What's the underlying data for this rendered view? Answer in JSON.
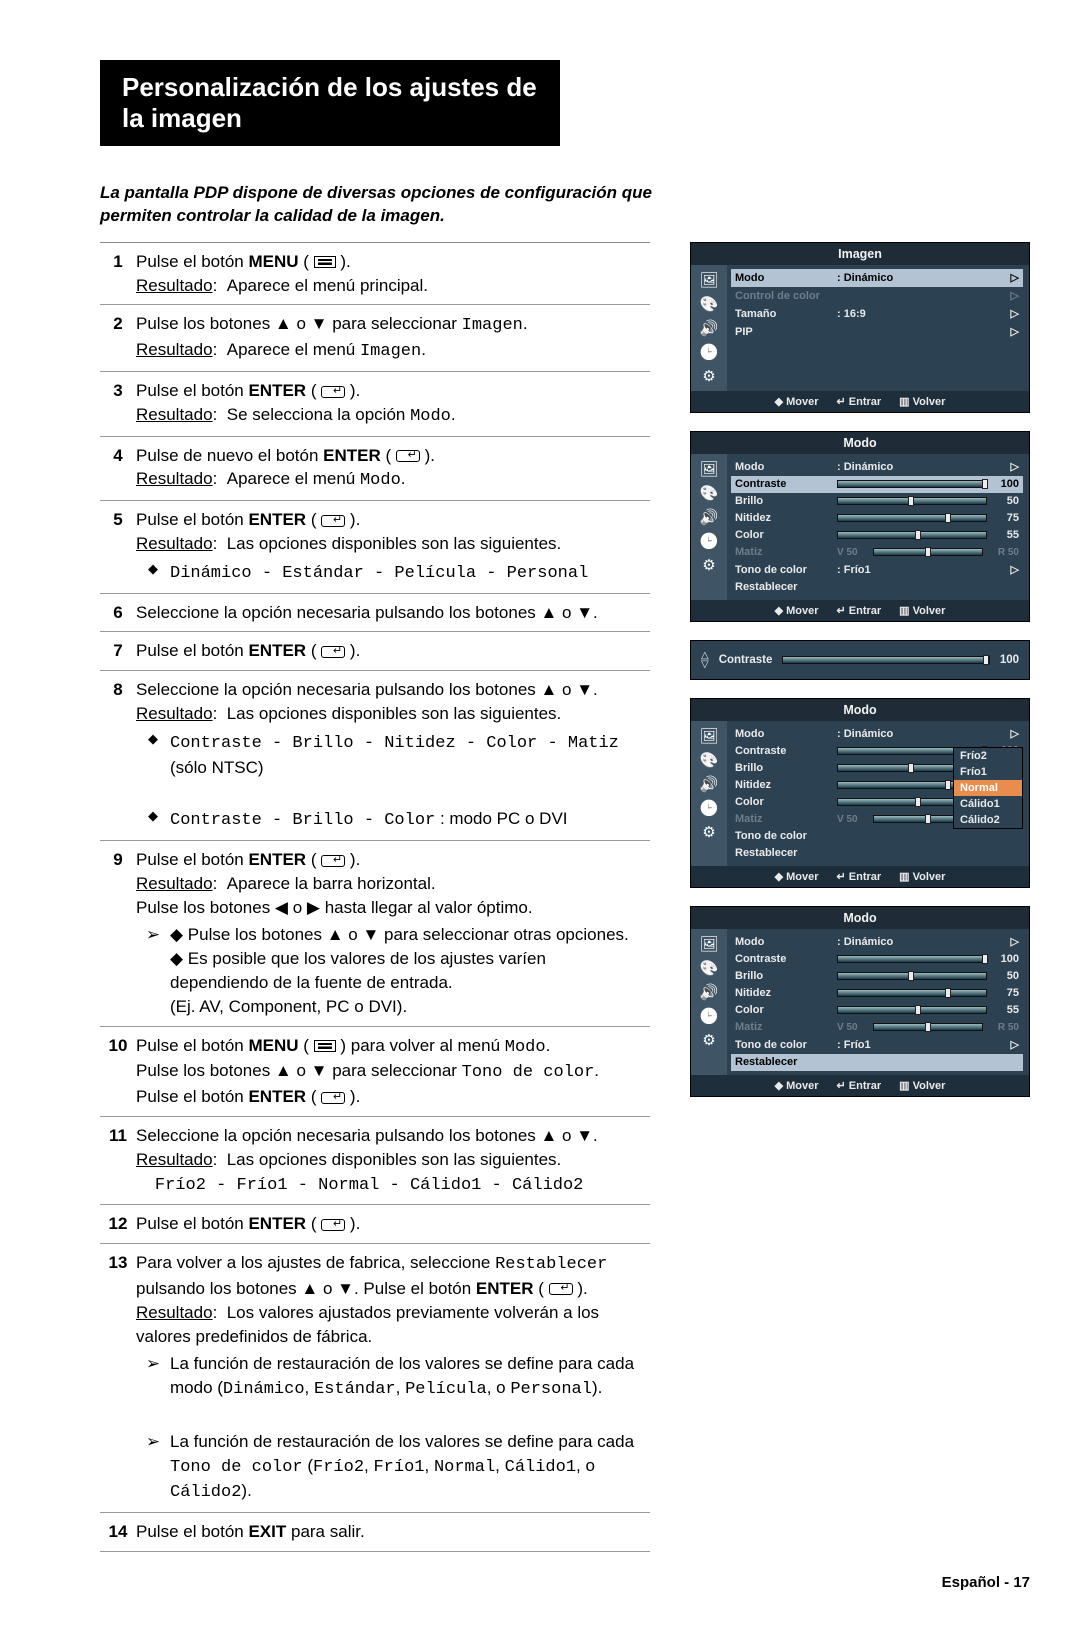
{
  "title": "Personalización de los ajustes de la imagen",
  "intro": "La pantalla PDP dispone de diversas opciones de configuración que permiten controlar la calidad de la imagen.",
  "steps": [
    {
      "n": "1",
      "lines": [
        "Pulse el botón <b>MENU</b> ( <span class='menu-glyph'></span> ).",
        "<span class='res-underline'>Resultado</span>: &nbsp;Aparece el menú principal."
      ]
    },
    {
      "n": "2",
      "lines": [
        "Pulse los botones ▲ o ▼ para seleccionar <span class='mono'>Imagen</span>.",
        "<span class='res-underline'>Resultado</span>: &nbsp;Aparece el menú <span class='mono'>Imagen</span>."
      ]
    },
    {
      "n": "3",
      "lines": [
        "Pulse el botón <b>ENTER</b> ( <span class='enter-glyph'></span> ).",
        "<span class='res-underline'>Resultado</span>: &nbsp;Se selecciona la opción <span class='mono'>Modo</span>."
      ]
    },
    {
      "n": "4",
      "lines": [
        "Pulse de nuevo el botón <b>ENTER</b> ( <span class='enter-glyph'></span> ).",
        "<span class='res-underline'>Resultado</span>: &nbsp;Aparece el menú <span class='mono'>Modo</span>."
      ]
    },
    {
      "n": "5",
      "lines": [
        "Pulse el botón <b>ENTER</b> ( <span class='enter-glyph'></span> ).",
        "<span class='res-underline'>Resultado</span>: &nbsp;Las opciones disponibles son las siguientes.",
        "<div class='sub-indent'><div class='diamond'>◆</div><div class='pointer-text'><span class='mono'>Dinámico - Estándar - Película - Personal</span></div></div>"
      ]
    },
    {
      "n": "6",
      "lines": [
        "Seleccione la opción necesaria pulsando los botones ▲ o ▼."
      ]
    },
    {
      "n": "7",
      "lines": [
        "Pulse el botón <b>ENTER</b> ( <span class='enter-glyph'></span> )."
      ]
    },
    {
      "n": "8",
      "lines": [
        "Seleccione la opción necesaria pulsando los botones ▲ o ▼.",
        "<span class='res-underline'>Resultado</span>: &nbsp;Las opciones disponibles son las siguientes.",
        "<div class='sub-indent'><div class='diamond'>◆</div><div class='pointer-text'><span class='mono'>Contraste - Brillo - Nitidez - Color - Matiz</span> (sólo NTSC)</div></div>",
        "<div class='sub-indent'><div class='diamond'>◆</div><div class='pointer-text'><span class='mono'>Contraste - Brillo - Color</span> : modo PC o DVI</div></div>"
      ]
    },
    {
      "n": "9",
      "lines": [
        "Pulse el botón <b>ENTER</b> ( <span class='enter-glyph'></span> ).",
        "<span class='res-underline'>Resultado</span>: &nbsp;Aparece la barra horizontal.<br>Pulse los botones ◀ o ▶ hasta llegar al valor óptimo.",
        "<div class='sub-indent'><div class='pointer'>➢</div><div class='pointer-text'>◆ Pulse los botones ▲ o ▼ para seleccionar otras opciones.<br>◆ Es posible que los valores de los ajustes varíen dependiendo de la fuente de entrada.<br>(Ej. AV, Component, PC o DVI).</div></div>"
      ]
    },
    {
      "n": "10",
      "lines": [
        "Pulse el botón <b>MENU</b> ( <span class='menu-glyph'></span> ) para volver al menú <span class='mono'>Modo</span>.<br>Pulse los botones ▲ o ▼ para seleccionar <span class='mono'>Tono de color</span>.<br>Pulse el botón <b>ENTER</b> ( <span class='enter-glyph'></span> )."
      ]
    },
    {
      "n": "11",
      "lines": [
        "Seleccione la opción necesaria pulsando los botones ▲ o ▼.",
        "<span class='res-underline'>Resultado</span>: &nbsp;Las opciones disponibles son las siguientes.<br>&nbsp;&nbsp;&nbsp;&nbsp;<span class='mono'>Frío2 - Frío1 - Normal - Cálido1 - Cálido2</span>"
      ]
    },
    {
      "n": "12",
      "lines": [
        "Pulse el botón <b>ENTER</b> ( <span class='enter-glyph'></span> )."
      ]
    },
    {
      "n": "13",
      "lines": [
        "Para volver a los ajustes de fabrica, seleccione <span class='mono'>Restablecer</span> pulsando los botones ▲ o ▼. Pulse el botón <b>ENTER</b> ( <span class='enter-glyph'></span> ).",
        "<span class='res-underline'>Resultado</span>: &nbsp;Los valores ajustados previamente volverán a los valores predefinidos de fábrica.",
        "<div class='sub-indent'><div class='pointer'>➢</div><div class='pointer-text'>La función de restauración de los valores se define para cada modo (<span class='mono'>Dinámico</span>, <span class='mono'>Estándar</span>, <span class='mono'>Película</span>, o <span class='mono'>Personal</span>).</div></div>",
        "<div class='sub-indent'><div class='pointer'>➢</div><div class='pointer-text'>La función de restauración de los valores se define para cada <span class='mono'>Tono de color</span> (<span class='mono'>Frío2</span>, <span class='mono'>Frío1</span>, <span class='mono'>Normal</span>, <span class='mono'>Cálido1</span>, o <span class='mono'>Cálido2</span>).</div></div>"
      ]
    },
    {
      "n": "14",
      "lines": [
        "Pulse el botón <b>EXIT</b> para salir."
      ]
    }
  ],
  "osd": {
    "foot": {
      "mover": "Mover",
      "entrar": "Entrar",
      "volver": "Volver"
    },
    "menu1": {
      "title": "Imagen",
      "rows": [
        {
          "label": "Modo",
          "val": ": Dinámico",
          "hl": true,
          "arrow": "▷"
        },
        {
          "label": "Control de color",
          "val": "",
          "dim": true,
          "arrow": "▷"
        },
        {
          "label": "Tamaño",
          "val": ": 16:9",
          "arrow": "▷"
        },
        {
          "label": "PIP",
          "val": "",
          "arrow": "▷"
        }
      ]
    },
    "menu2": {
      "title": "Modo",
      "rows": [
        {
          "label": "Modo",
          "val": ": Dinámico",
          "arrow": "▷"
        },
        {
          "label": "Contraste",
          "slider": 100,
          "hl": true,
          "num": "100"
        },
        {
          "label": "Brillo",
          "slider": 50,
          "num": "50"
        },
        {
          "label": "Nitidez",
          "slider": 75,
          "num": "75"
        },
        {
          "label": "Color",
          "slider": 55,
          "num": "55"
        },
        {
          "label": "Matiz",
          "prefix": "V 50",
          "slider": 50,
          "suffix": "R 50",
          "dim": true
        },
        {
          "label": "Tono de color",
          "val": ":  Frío1",
          "arrow": "▷"
        },
        {
          "label": "Restablecer",
          "val": "",
          "arrow": ""
        }
      ]
    },
    "bar": {
      "label": "Contraste",
      "slider": 100,
      "num": "100"
    },
    "menu3": {
      "title": "Modo",
      "rows": [
        {
          "label": "Modo",
          "val": ": Dinámico",
          "arrow": "▷"
        },
        {
          "label": "Contraste",
          "slider": 100,
          "num": "100"
        },
        {
          "label": "Brillo",
          "slider": 50,
          "num": "50"
        },
        {
          "label": "Nitidez",
          "slider": 75,
          "num": "75"
        },
        {
          "label": "Color",
          "slider": 55,
          "num": "55"
        },
        {
          "label": "Matiz",
          "prefix": "V 50",
          "slider": 50,
          "suffix": "R 50",
          "dim": true
        },
        {
          "label": "Tono de color",
          "val": "",
          "arrow": ""
        },
        {
          "label": "Restablecer",
          "val": "",
          "arrow": ""
        }
      ],
      "dropdown": [
        "Frío2",
        "Frío1",
        "Normal",
        "Cálido1",
        "Cálido2"
      ],
      "dropdown_hl": 2
    },
    "menu4": {
      "title": "Modo",
      "rows": [
        {
          "label": "Modo",
          "val": ": Dinámico",
          "arrow": "▷"
        },
        {
          "label": "Contraste",
          "slider": 100,
          "num": "100"
        },
        {
          "label": "Brillo",
          "slider": 50,
          "num": "50"
        },
        {
          "label": "Nitidez",
          "slider": 75,
          "num": "75"
        },
        {
          "label": "Color",
          "slider": 55,
          "num": "55"
        },
        {
          "label": "Matiz",
          "prefix": "V 50",
          "slider": 50,
          "suffix": "R 50",
          "dim": true
        },
        {
          "label": "Tono de color",
          "val": ":  Frío1",
          "arrow": "▷"
        },
        {
          "label": "Restablecer",
          "val": "",
          "hl": true,
          "arrow": ""
        }
      ]
    }
  },
  "footer": "Español - 17",
  "colors": {
    "osdbg": "#2c4152",
    "osdtitle": "#1f2c37",
    "osdhl": "#b3c3d3",
    "osdiconbg": "#3f5566",
    "dropdownhl": "#e88d4e"
  }
}
